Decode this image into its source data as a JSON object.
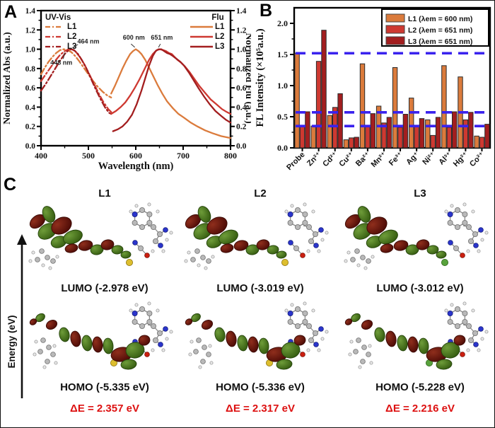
{
  "figure": {
    "panel_a_label": "A",
    "panel_b_label": "B",
    "panel_c_label": "C"
  },
  "chart_data": [
    {
      "type": "line",
      "panel": "A",
      "xlabel": "Wavelength (nm)",
      "ylabel_left": "Normalized Abs (a.u.)",
      "ylabel_right": "Normalized Flu (a.u.)",
      "xlim": [
        400,
        800
      ],
      "ylim": [
        0.0,
        1.4
      ],
      "xticks": [
        400,
        500,
        600,
        700,
        800
      ],
      "ytick_labels": [
        "0.0",
        "0.2",
        "0.4",
        "0.6",
        "0.8",
        "1.0",
        "1.2",
        "1.4"
      ],
      "grid": false,
      "legends": {
        "uvvis": {
          "title": "UV-Vis",
          "items": [
            {
              "label": "L1",
              "color": "#DB7B3C"
            },
            {
              "label": "L2",
              "color": "#CE3931"
            },
            {
              "label": "L3",
              "color": "#A31E1F"
            }
          ]
        },
        "flu": {
          "title": "Flu",
          "items": [
            {
              "label": "L1",
              "color": "#DB7B3C"
            },
            {
              "label": "L2",
              "color": "#CE3931"
            },
            {
              "label": "L3",
              "color": "#A31E1F"
            }
          ]
        }
      },
      "annotations": [
        {
          "text": "448 nm",
          "text_at": [
            443,
            0.84
          ],
          "leader": [
            [
              447,
              0.9
            ],
            [
              450,
              0.965
            ]
          ]
        },
        {
          "text": "464 nm",
          "text_at": [
            500,
            1.06
          ],
          "leader": [
            [
              478,
              1.05
            ],
            [
              467,
              1.015
            ]
          ]
        },
        {
          "text": "600 nm",
          "text_at": [
            596,
            1.1
          ],
          "leader": [
            [
              590,
              1.055
            ],
            [
              598,
              1.02
            ]
          ]
        },
        {
          "text": "651 nm",
          "text_at": [
            655,
            1.1
          ],
          "leader": [
            [
              652,
              1.055
            ],
            [
              648,
              1.02
            ]
          ]
        }
      ],
      "series": [
        {
          "name": "UV-Vis L1",
          "group": "uvvis",
          "style": "dashdot",
          "color": "#DB7B3C",
          "points": [
            [
              400,
              0.74
            ],
            [
              408,
              0.81
            ],
            [
              416,
              0.87
            ],
            [
              424,
              0.92
            ],
            [
              432,
              0.96
            ],
            [
              440,
              0.99
            ],
            [
              448,
              1.0
            ],
            [
              456,
              0.99
            ],
            [
              464,
              0.97
            ],
            [
              472,
              0.93
            ],
            [
              480,
              0.88
            ],
            [
              490,
              0.81
            ],
            [
              500,
              0.74
            ],
            [
              510,
              0.67
            ],
            [
              520,
              0.61
            ],
            [
              530,
              0.56
            ],
            [
              540,
              0.52
            ],
            [
              548,
              0.5
            ]
          ]
        },
        {
          "name": "UV-Vis L2",
          "group": "uvvis",
          "style": "dashdot",
          "color": "#CE3931",
          "points": [
            [
              400,
              0.67
            ],
            [
              410,
              0.74
            ],
            [
              420,
              0.81
            ],
            [
              430,
              0.88
            ],
            [
              440,
              0.94
            ],
            [
              450,
              0.98
            ],
            [
              458,
              1.0
            ],
            [
              466,
              1.0
            ],
            [
              474,
              0.97
            ],
            [
              482,
              0.92
            ],
            [
              492,
              0.84
            ],
            [
              502,
              0.74
            ],
            [
              512,
              0.64
            ],
            [
              522,
              0.54
            ],
            [
              532,
              0.45
            ],
            [
              542,
              0.38
            ],
            [
              550,
              0.34
            ]
          ]
        },
        {
          "name": "UV-Vis L3",
          "group": "uvvis",
          "style": "dashdot",
          "color": "#A31E1F",
          "points": [
            [
              400,
              0.57
            ],
            [
              410,
              0.64
            ],
            [
              420,
              0.72
            ],
            [
              430,
              0.8
            ],
            [
              440,
              0.88
            ],
            [
              450,
              0.95
            ],
            [
              458,
              0.99
            ],
            [
              464,
              1.0
            ],
            [
              470,
              0.99
            ],
            [
              478,
              0.95
            ],
            [
              486,
              0.89
            ],
            [
              496,
              0.8
            ],
            [
              506,
              0.69
            ],
            [
              516,
              0.58
            ],
            [
              526,
              0.48
            ],
            [
              536,
              0.39
            ],
            [
              544,
              0.34
            ],
            [
              548,
              0.33
            ]
          ]
        },
        {
          "name": "Flu L1",
          "group": "flu",
          "style": "solid",
          "color": "#DB7B3C",
          "points": [
            [
              548,
              0.54
            ],
            [
              556,
              0.62
            ],
            [
              564,
              0.71
            ],
            [
              572,
              0.8
            ],
            [
              580,
              0.88
            ],
            [
              588,
              0.95
            ],
            [
              594,
              0.98
            ],
            [
              600,
              1.0
            ],
            [
              606,
              0.98
            ],
            [
              612,
              0.95
            ],
            [
              620,
              0.89
            ],
            [
              628,
              0.81
            ],
            [
              636,
              0.73
            ],
            [
              646,
              0.63
            ],
            [
              656,
              0.54
            ],
            [
              666,
              0.46
            ],
            [
              678,
              0.39
            ],
            [
              690,
              0.33
            ],
            [
              702,
              0.29
            ],
            [
              716,
              0.24
            ],
            [
              730,
              0.2
            ],
            [
              746,
              0.16
            ],
            [
              762,
              0.13
            ],
            [
              780,
              0.1
            ],
            [
              800,
              0.08
            ]
          ]
        },
        {
          "name": "Flu L2",
          "group": "flu",
          "style": "solid",
          "color": "#CE3931",
          "points": [
            [
              548,
              0.33
            ],
            [
              558,
              0.36
            ],
            [
              568,
              0.4
            ],
            [
              578,
              0.45
            ],
            [
              588,
              0.52
            ],
            [
              598,
              0.6
            ],
            [
              608,
              0.69
            ],
            [
              618,
              0.79
            ],
            [
              628,
              0.89
            ],
            [
              636,
              0.95
            ],
            [
              644,
              0.99
            ],
            [
              651,
              1.0
            ],
            [
              658,
              0.99
            ],
            [
              664,
              0.98
            ],
            [
              670,
              0.96
            ],
            [
              676,
              0.95
            ],
            [
              682,
              0.92
            ],
            [
              688,
              0.89
            ],
            [
              696,
              0.86
            ],
            [
              704,
              0.82
            ],
            [
              714,
              0.76
            ],
            [
              724,
              0.69
            ],
            [
              734,
              0.62
            ],
            [
              746,
              0.55
            ],
            [
              758,
              0.48
            ],
            [
              770,
              0.43
            ],
            [
              782,
              0.38
            ],
            [
              792,
              0.35
            ],
            [
              800,
              0.33
            ]
          ]
        },
        {
          "name": "Flu L3",
          "group": "flu",
          "style": "solid",
          "color": "#A31E1F",
          "points": [
            [
              552,
              0.15
            ],
            [
              562,
              0.17
            ],
            [
              572,
              0.2
            ],
            [
              582,
              0.25
            ],
            [
              592,
              0.32
            ],
            [
              602,
              0.43
            ],
            [
              612,
              0.57
            ],
            [
              620,
              0.7
            ],
            [
              628,
              0.83
            ],
            [
              636,
              0.93
            ],
            [
              642,
              0.98
            ],
            [
              648,
              1.0
            ],
            [
              654,
              1.0
            ],
            [
              660,
              0.98
            ],
            [
              666,
              0.96
            ],
            [
              672,
              0.95
            ],
            [
              678,
              0.93
            ],
            [
              686,
              0.9
            ],
            [
              694,
              0.87
            ],
            [
              702,
              0.83
            ],
            [
              712,
              0.76
            ],
            [
              722,
              0.68
            ],
            [
              732,
              0.6
            ],
            [
              744,
              0.51
            ],
            [
              756,
              0.43
            ],
            [
              768,
              0.36
            ],
            [
              780,
              0.31
            ],
            [
              790,
              0.27
            ],
            [
              800,
              0.24
            ]
          ]
        }
      ]
    },
    {
      "type": "bar",
      "panel": "B",
      "ylabel": "FL Intensity (×10⁵a.u.)",
      "ylim": [
        0,
        2.25
      ],
      "ytick_labels": [
        "0.0",
        "0.5",
        "1.0",
        "1.5",
        "2.0"
      ],
      "categories": [
        "Probe",
        "Zn²⁺",
        "Cd²⁺",
        "Cu²⁺",
        "Ba²⁺",
        "Mn²⁺",
        "Fe³⁺",
        "Ag⁺",
        "Ni²⁺",
        "Al³⁺",
        "Hg²⁺",
        "Co²⁺"
      ],
      "series": [
        {
          "name": "L1 (λem = 600 nm)",
          "color": "#DB7B3C",
          "values": [
            1.52,
            0.35,
            0.52,
            0.13,
            1.35,
            0.67,
            1.29,
            0.8,
            0.45,
            1.32,
            1.14,
            0.19
          ]
        },
        {
          "name": "L2 (λem = 651 nm)",
          "color": "#CE3931",
          "values": [
            0.35,
            1.39,
            0.65,
            0.16,
            0.34,
            0.4,
            0.33,
            0.35,
            0.2,
            0.33,
            0.45,
            0.17
          ]
        },
        {
          "name": "L3 (λem = 651 nm)",
          "color": "#A31E1F",
          "values": [
            0.58,
            1.89,
            0.87,
            0.17,
            0.55,
            0.49,
            0.54,
            0.47,
            0.49,
            0.58,
            0.57,
            0.38
          ]
        }
      ],
      "reference_lines": {
        "color": "#3A22EE",
        "style": "dashed",
        "values": [
          1.52,
          0.57,
          0.35
        ]
      },
      "legend_position": "top-right"
    }
  ],
  "panelC": {
    "energy_axis_label": "Energy (eV)",
    "delta_color": "#DD1111",
    "orbital_colors": {
      "negative_lobe": "#641009",
      "positive_lobe": "#4A7A1D"
    },
    "columns": [
      {
        "name": "L1",
        "lumo_label": "LUMO (-2.978 eV)",
        "homo_label": "HOMO (-5.335 eV)",
        "delta_label": "ΔE = 2.357 eV"
      },
      {
        "name": "L2",
        "lumo_label": "LUMO (-3.019 eV)",
        "homo_label": "HOMO (-5.336 eV)",
        "delta_label": "ΔE = 2.317 eV"
      },
      {
        "name": "L3",
        "lumo_label": "LUMO (-3.012 eV)",
        "homo_label": "HOMO (-5.228 eV)",
        "delta_label": "ΔE = 2.216 eV"
      }
    ]
  }
}
